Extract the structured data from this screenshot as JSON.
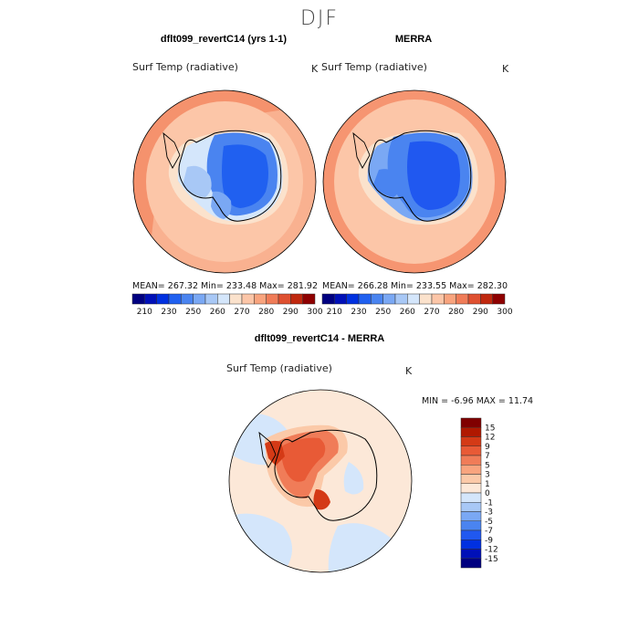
{
  "page_title": "DJF",
  "chart_data": [
    {
      "type": "heatmap",
      "projection": "south-polar-stereographic",
      "title": "dflt099_revertC14 (yrs 1-1)",
      "variable": "Surf Temp (radiative)",
      "units": "K",
      "stats": {
        "mean": "267.32",
        "min": "233.48",
        "max": "281.92"
      },
      "stats_text": "MEAN= 267.32  Min= 233.48  Max= 281.92"
    },
    {
      "type": "heatmap",
      "projection": "south-polar-stereographic",
      "title": "MERRA",
      "variable": "Surf Temp (radiative)",
      "units": "K",
      "stats": {
        "mean": "266.28",
        "min": "233.55",
        "max": "282.30"
      },
      "stats_text": "MEAN= 266.28  Min= 233.55  Max= 282.30"
    },
    {
      "type": "heatmap",
      "projection": "south-polar-stereographic",
      "title": "dflt099_revertC14 - MERRA",
      "variable": "Surf Temp (radiative)",
      "units": "K",
      "stats": {
        "min": "-6.96",
        "max": "11.74"
      },
      "stats_text": "MIN =   -6.96  MAX =   11.74"
    }
  ],
  "colorbar_abs": {
    "colors": [
      "#000080",
      "#0010b8",
      "#0030e0",
      "#2060f0",
      "#4a84f0",
      "#7aa8f4",
      "#a8c8f6",
      "#d4e6fb",
      "#fbe2cc",
      "#fcc6a8",
      "#f9a47e",
      "#f07c58",
      "#df5030",
      "#c0280e",
      "#8e0000"
    ],
    "tick_labels": [
      "210",
      "230",
      "250",
      "260",
      "270",
      "280",
      "290",
      "300"
    ]
  },
  "colorbar_diff": {
    "colors": [
      "#000080",
      "#0010b8",
      "#0030e0",
      "#2058f0",
      "#4a84f0",
      "#7aa8f4",
      "#a8c8f6",
      "#d4e6fb",
      "#fce8d8",
      "#fbc9a8",
      "#f9a47e",
      "#f07c58",
      "#e85a36",
      "#d43a16",
      "#b01800",
      "#800000"
    ],
    "tick_labels": [
      "15",
      "12",
      "9",
      "7",
      "5",
      "3",
      "1",
      "0",
      "-1",
      "-3",
      "-5",
      "-7",
      "-9",
      "-12",
      "-15"
    ]
  }
}
